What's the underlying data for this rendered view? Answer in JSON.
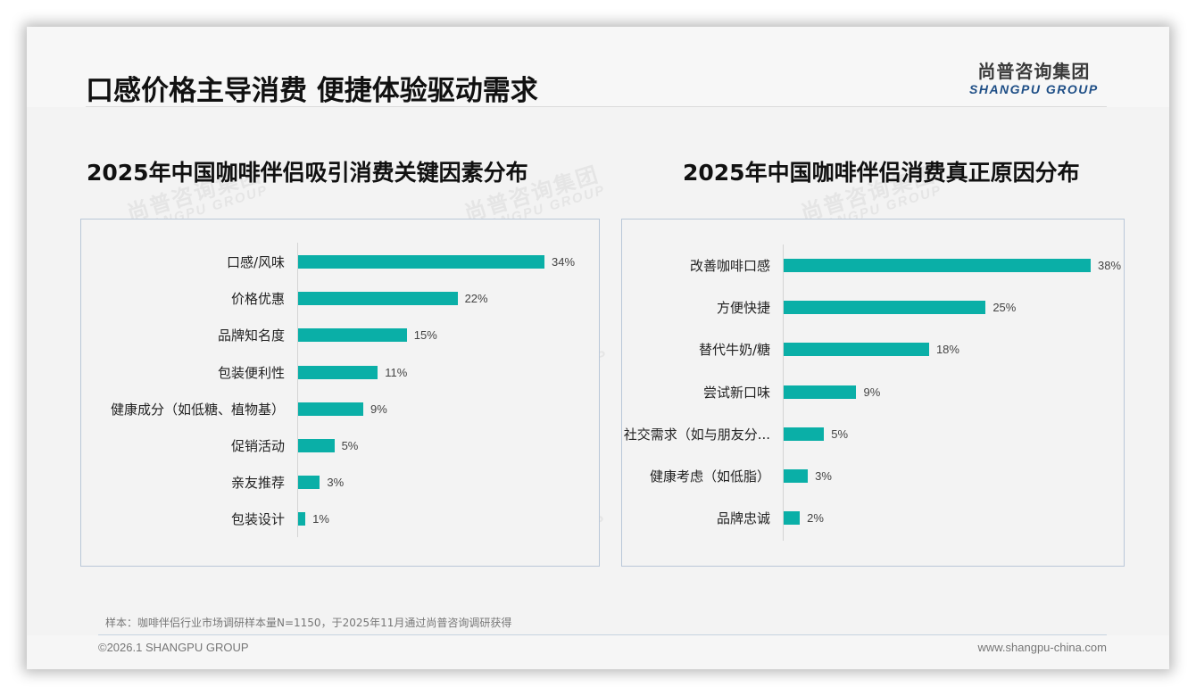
{
  "header": {
    "title": "口感价格主导消费 便捷体验驱动需求",
    "logo_cn": "尚普咨询集团",
    "logo_en": "SHANGPU GROUP"
  },
  "watermark": {
    "cn": "尚普咨询集团",
    "en": "SHANGPU GROUP"
  },
  "colors": {
    "bar": "#0aafa7",
    "logo_en": "#1e4e86",
    "box_border": "#b9c7d8"
  },
  "chart_data": [
    {
      "type": "bar",
      "orientation": "horizontal",
      "title": "2025年中国咖啡伴侣吸引消费关键因素分布",
      "categories": [
        "口感/风味",
        "价格优惠",
        "品牌知名度",
        "包装便利性",
        "健康成分（如低糖、植物基）",
        "促销活动",
        "亲友推荐",
        "包装设计"
      ],
      "values": [
        34,
        22,
        15,
        11,
        9,
        5,
        3,
        1
      ],
      "value_labels": [
        "34%",
        "22%",
        "15%",
        "11%",
        "9%",
        "5%",
        "3%",
        "1%"
      ],
      "xlabel": "",
      "ylabel": "",
      "unit": "%",
      "grid": false,
      "legend": "none"
    },
    {
      "type": "bar",
      "orientation": "horizontal",
      "title": "2025年中国咖啡伴侣消费真正原因分布",
      "categories": [
        "改善咖啡口感",
        "方便快捷",
        "替代牛奶/糖",
        "尝试新口味",
        "社交需求（如与朋友分...",
        "健康考虑（如低脂）",
        "品牌忠诚"
      ],
      "values": [
        38,
        25,
        18,
        9,
        5,
        3,
        2
      ],
      "value_labels": [
        "38%",
        "25%",
        "18%",
        "9%",
        "5%",
        "3%",
        "2%"
      ],
      "xlabel": "",
      "ylabel": "",
      "unit": "%",
      "grid": false,
      "legend": "none"
    }
  ],
  "footer": {
    "note": "样本：咖啡伴侣行业市场调研样本量N=1150，于2025年11月通过尚普咨询调研获得",
    "copyright": "©2026.1 SHANGPU GROUP",
    "website": "www.shangpu-china.com"
  }
}
